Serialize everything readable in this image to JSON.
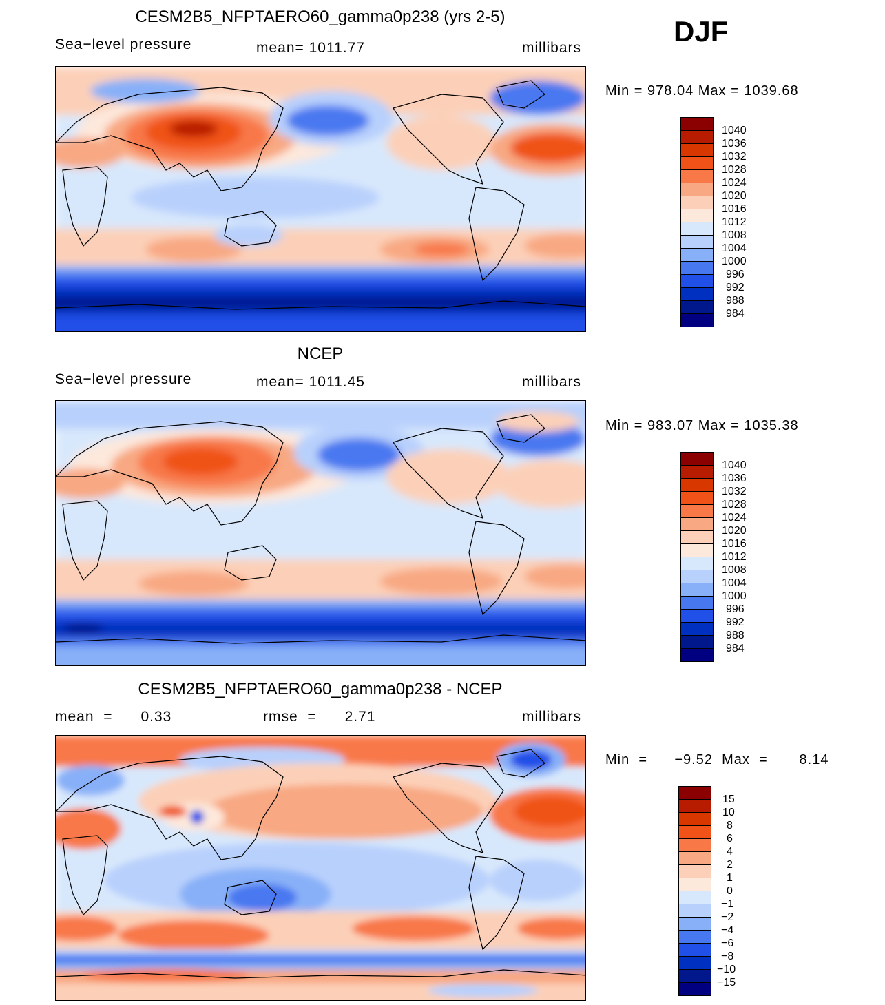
{
  "season": "DJF",
  "panels": [
    {
      "title": "CESM2B5_NFPTAERO60_gamma0p238 (yrs 2-5)",
      "left_text": "Sea−level pressure",
      "mid_text": "mean=  1011.77",
      "right_text": "millibars",
      "minmax": "Min  =  978.04  Max  =  1039.68",
      "colorbar_labels": [
        "1040",
        "1036",
        "1032",
        "1028",
        "1024",
        "1020",
        "1016",
        "1012",
        "1008",
        "1004",
        "1000",
        "996",
        "992",
        "988",
        "984"
      ]
    },
    {
      "title": "NCEP",
      "left_text": "Sea−level pressure",
      "mid_text": "mean=  1011.45",
      "right_text": "millibars",
      "minmax": "Min  =  983.07  Max  =  1035.38",
      "colorbar_labels": [
        "1040",
        "1036",
        "1032",
        "1028",
        "1024",
        "1020",
        "1016",
        "1012",
        "1008",
        "1004",
        "1000",
        "996",
        "992",
        "988",
        "984"
      ]
    },
    {
      "title": "CESM2B5_NFPTAERO60_gamma0p238 - NCEP",
      "left_text": "mean  =      0.33",
      "mid_text": "rmse  =      2.71",
      "right_text": "millibars",
      "minmax": "Min  =      −9.52  Max  =       8.14",
      "colorbar_labels": [
        "15",
        "10",
        "8",
        "6",
        "4",
        "2",
        "1",
        "0",
        "−1",
        "−2",
        "−4",
        "−6",
        "−8",
        "−10",
        "−15"
      ]
    }
  ],
  "colors": {
    "colorbar": [
      "#8b0000",
      "#b81c00",
      "#d83700",
      "#f05218",
      "#f87848",
      "#f8a882",
      "#fcd0b8",
      "#fde8dc",
      "#d8e8fc",
      "#b8d0fc",
      "#88b0f8",
      "#4878f0",
      "#2050e8",
      "#0030c0",
      "#00188c",
      "#000080"
    ]
  }
}
